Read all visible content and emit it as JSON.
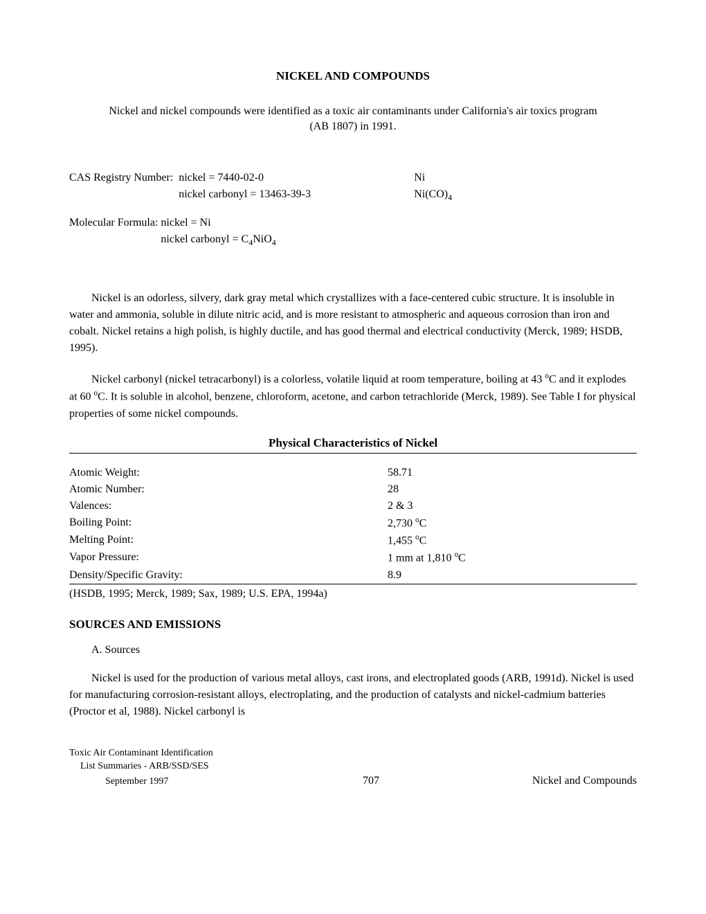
{
  "title": "NICKEL AND COMPOUNDS",
  "intro": "Nickel and nickel compounds were identified as a toxic air contaminants under California's air toxics program (AB 1807) in 1991.",
  "cas": {
    "label": "CAS Registry Number:",
    "row1_value": "nickel = 7440-02-0",
    "row1_formula": "Ni",
    "row2_value": "nickel carbonyl = 13463-39-3",
    "row2_formula_prefix": "Ni(CO)",
    "row2_formula_sub": "4"
  },
  "molecular": {
    "label": "Molecular Formula:",
    "row1_value": "nickel = Ni",
    "row2_prefix": "nickel carbonyl = C",
    "row2_sub1": "4",
    "row2_mid": "NiO",
    "row2_sub2": "4"
  },
  "para1": "Nickel is an odorless, silvery, dark gray metal which crystallizes with a face-centered cubic structure.  It is insoluble in water and ammonia, soluble in dilute nitric acid, and is more resistant to atmospheric and aqueous corrosion than iron and cobalt.  Nickel retains a high polish, is highly ductile, and has good thermal and electrical conductivity (Merck, 1989; HSDB, 1995).",
  "para2_pre": "Nickel carbonyl (nickel tetracarbonyl) is a colorless, volatile liquid at room temperature, boiling at 43 ",
  "para2_mid1": "C and it explodes at 60 ",
  "para2_post": "C.  It is soluble in alcohol, benzene, chloroform, acetone, and carbon tetrachloride (Merck, 1989).  See Table I for physical properties of some nickel compounds.",
  "table_title": "Physical Characteristics of Nickel",
  "properties": [
    {
      "label": "Atomic Weight:",
      "value": "58.71"
    },
    {
      "label": "Atomic Number:",
      "value": "28"
    },
    {
      "label": "Valences:",
      "value": "2 & 3"
    },
    {
      "label": "Boiling Point:",
      "value_pre": "2,730 ",
      "super": "o",
      "value_post": "C"
    },
    {
      "label": "Melting Point:",
      "value_pre": "1,455 ",
      "super": "o",
      "value_post": "C"
    },
    {
      "label": "Vapor Pressure:",
      "value_pre": "1 mm at 1,810 ",
      "super": "o",
      "value_post": "C"
    },
    {
      "label": "Density/Specific Gravity:",
      "value": "8.9"
    }
  ],
  "table_citation": "(HSDB, 1995; Merck, 1989; Sax, 1989; U.S. EPA, 1994a)",
  "section_heading": "SOURCES AND EMISSIONS",
  "sub_heading": "A.  Sources",
  "para3": "Nickel is used for the production of various metal alloys, cast irons, and electroplated goods (ARB, 1991d).  Nickel is used for manufacturing corrosion-resistant alloys, electroplating, and the production of catalysts and nickel-cadmium batteries (Proctor et al, 1988).  Nickel carbonyl is",
  "footer": {
    "line1": "Toxic Air Contaminant Identification",
    "line2": "List Summaries - ARB/SSD/SES",
    "date": "September 1997",
    "page_number": "707",
    "compound": "Nickel and Compounds"
  },
  "deg_super": "o"
}
